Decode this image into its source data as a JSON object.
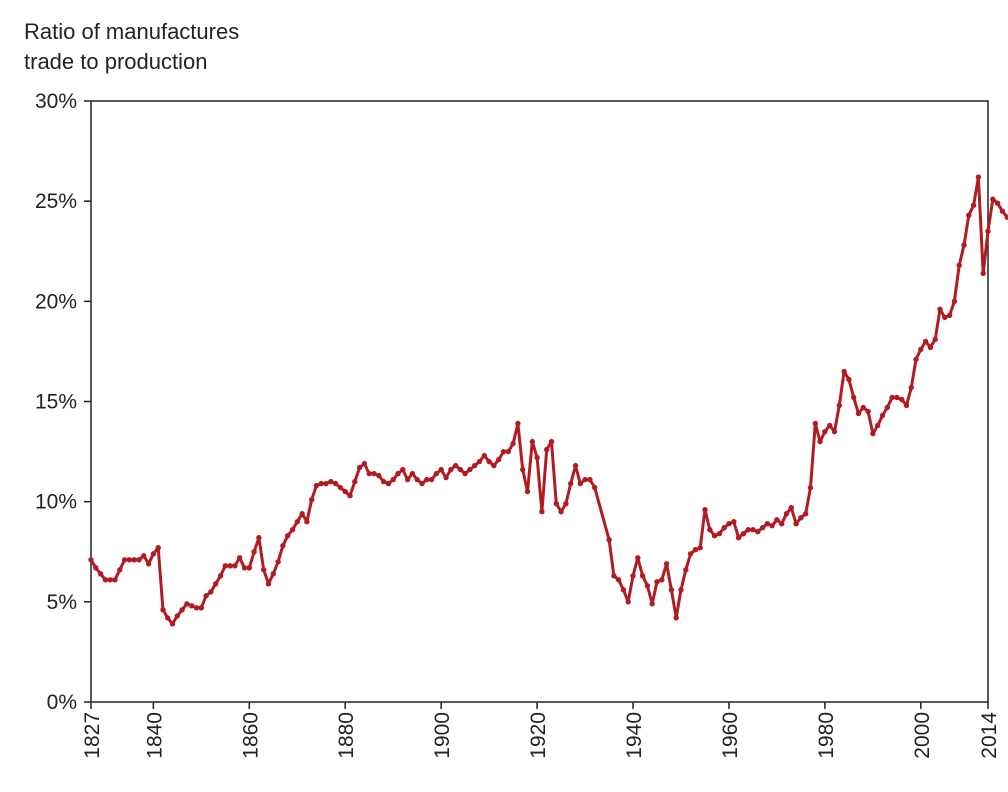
{
  "chart_data": {
    "type": "line",
    "title": "",
    "ylabel_lines": [
      "Ratio of manufactures",
      "trade to production"
    ],
    "xlabel": "",
    "xlim": [
      1827,
      2014
    ],
    "ylim": [
      0,
      30
    ],
    "y_ticks": [
      {
        "value": 0,
        "label": "0%"
      },
      {
        "value": 5,
        "label": "5%"
      },
      {
        "value": 10,
        "label": "10%"
      },
      {
        "value": 15,
        "label": "15%"
      },
      {
        "value": 20,
        "label": "20%"
      },
      {
        "value": 25,
        "label": "25%"
      },
      {
        "value": 30,
        "label": "30%"
      }
    ],
    "x_ticks": [
      {
        "value": 1827,
        "label": "1827"
      },
      {
        "value": 1840,
        "label": "1840"
      },
      {
        "value": 1860,
        "label": "1860"
      },
      {
        "value": 1880,
        "label": "1880"
      },
      {
        "value": 1900,
        "label": "1900"
      },
      {
        "value": 1920,
        "label": "1920"
      },
      {
        "value": 1940,
        "label": "1940"
      },
      {
        "value": 1960,
        "label": "1960"
      },
      {
        "value": 1980,
        "label": "1980"
      },
      {
        "value": 2000,
        "label": "2000"
      },
      {
        "value": 2014,
        "label": "2014"
      }
    ],
    "grid": false,
    "line_color": "#b01c22",
    "series": [
      {
        "points": [
          [
            1827,
            7.1
          ],
          [
            1828,
            6.7
          ],
          [
            1829,
            6.4
          ],
          [
            1830,
            6.1
          ],
          [
            1831,
            6.1
          ],
          [
            1832,
            6.1
          ],
          [
            1833,
            6.6
          ],
          [
            1834,
            7.1
          ],
          [
            1835,
            7.1
          ],
          [
            1836,
            7.1
          ],
          [
            1837,
            7.1
          ],
          [
            1838,
            7.3
          ],
          [
            1839,
            6.9
          ],
          [
            1840,
            7.4
          ],
          [
            1841,
            7.7
          ],
          [
            1842,
            4.6
          ],
          [
            1843,
            4.2
          ],
          [
            1844,
            3.9
          ],
          [
            1845,
            4.3
          ],
          [
            1846,
            4.6
          ],
          [
            1847,
            4.9
          ],
          [
            1848,
            4.8
          ],
          [
            1849,
            4.7
          ],
          [
            1850,
            4.7
          ],
          [
            1851,
            5.3
          ],
          [
            1852,
            5.5
          ],
          [
            1853,
            5.9
          ],
          [
            1854,
            6.3
          ],
          [
            1855,
            6.8
          ],
          [
            1856,
            6.8
          ],
          [
            1857,
            6.8
          ],
          [
            1858,
            7.2
          ],
          [
            1859,
            6.7
          ],
          [
            1860,
            6.7
          ],
          [
            1861,
            7.5
          ],
          [
            1862,
            8.2
          ],
          [
            1863,
            6.6
          ],
          [
            1864,
            5.9
          ],
          [
            1865,
            6.4
          ],
          [
            1866,
            7.0
          ],
          [
            1867,
            7.8
          ],
          [
            1868,
            8.3
          ],
          [
            1869,
            8.6
          ],
          [
            1870,
            9.0
          ],
          [
            1871,
            9.4
          ],
          [
            1872,
            9.0
          ],
          [
            1873,
            10.1
          ],
          [
            1874,
            10.8
          ],
          [
            1875,
            10.9
          ],
          [
            1876,
            10.9
          ],
          [
            1877,
            11.0
          ],
          [
            1878,
            10.9
          ],
          [
            1879,
            10.7
          ],
          [
            1880,
            10.5
          ],
          [
            1881,
            10.3
          ],
          [
            1882,
            11.0
          ],
          [
            1883,
            11.7
          ],
          [
            1884,
            11.9
          ],
          [
            1885,
            11.4
          ],
          [
            1886,
            11.4
          ],
          [
            1887,
            11.3
          ],
          [
            1888,
            11.0
          ],
          [
            1889,
            10.9
          ],
          [
            1890,
            11.1
          ],
          [
            1891,
            11.4
          ],
          [
            1892,
            11.6
          ],
          [
            1893,
            11.1
          ],
          [
            1894,
            11.4
          ],
          [
            1895,
            11.1
          ],
          [
            1896,
            10.9
          ],
          [
            1897,
            11.1
          ],
          [
            1898,
            11.1
          ],
          [
            1899,
            11.4
          ],
          [
            1900,
            11.6
          ],
          [
            1901,
            11.2
          ],
          [
            1902,
            11.6
          ],
          [
            1903,
            11.8
          ],
          [
            1904,
            11.6
          ],
          [
            1905,
            11.4
          ],
          [
            1906,
            11.6
          ],
          [
            1907,
            11.8
          ],
          [
            1908,
            12.0
          ],
          [
            1909,
            12.3
          ],
          [
            1910,
            12.0
          ],
          [
            1911,
            11.8
          ],
          [
            1912,
            12.1
          ],
          [
            1913,
            12.5
          ],
          [
            1914,
            12.5
          ],
          [
            1915,
            12.9
          ],
          [
            1916,
            13.9
          ],
          [
            1917,
            11.6
          ],
          [
            1918,
            10.5
          ],
          [
            1919,
            13.0
          ],
          [
            1920,
            12.2
          ],
          [
            1921,
            9.5
          ],
          [
            1922,
            12.6
          ],
          [
            1923,
            13.0
          ],
          [
            1924,
            9.9
          ],
          [
            1925,
            9.5
          ],
          [
            1926,
            9.9
          ],
          [
            1927,
            10.9
          ],
          [
            1928,
            11.8
          ],
          [
            1929,
            10.9
          ],
          [
            1930,
            11.1
          ],
          [
            1931,
            11.1
          ],
          [
            1932,
            10.7
          ],
          [
            1935,
            8.1
          ],
          [
            1936,
            6.3
          ],
          [
            1937,
            6.1
          ],
          [
            1938,
            5.6
          ],
          [
            1939,
            5.0
          ],
          [
            1940,
            6.3
          ],
          [
            1941,
            7.2
          ],
          [
            1942,
            6.3
          ],
          [
            1943,
            5.8
          ],
          [
            1944,
            4.9
          ],
          [
            1945,
            6.0
          ],
          [
            1946,
            6.1
          ],
          [
            1947,
            6.9
          ],
          [
            1948,
            5.6
          ],
          [
            1949,
            4.2
          ],
          [
            1950,
            5.6
          ],
          [
            1951,
            6.6
          ],
          [
            1952,
            7.4
          ],
          [
            1953,
            7.6
          ],
          [
            1954,
            7.7
          ],
          [
            1955,
            9.6
          ],
          [
            1956,
            8.6
          ],
          [
            1957,
            8.3
          ],
          [
            1958,
            8.4
          ],
          [
            1959,
            8.7
          ],
          [
            1960,
            8.9
          ],
          [
            1961,
            9.0
          ],
          [
            1962,
            8.2
          ],
          [
            1963,
            8.4
          ],
          [
            1964,
            8.6
          ],
          [
            1965,
            8.6
          ],
          [
            1966,
            8.5
          ],
          [
            1967,
            8.7
          ],
          [
            1968,
            8.9
          ],
          [
            1969,
            8.8
          ],
          [
            1970,
            9.1
          ],
          [
            1971,
            8.9
          ],
          [
            1972,
            9.4
          ],
          [
            1973,
            9.7
          ],
          [
            1974,
            8.9
          ],
          [
            1975,
            9.2
          ],
          [
            1976,
            9.4
          ],
          [
            1977,
            10.7
          ],
          [
            1978,
            13.9
          ],
          [
            1979,
            13.0
          ],
          [
            1980,
            13.5
          ],
          [
            1981,
            13.8
          ],
          [
            1982,
            13.5
          ],
          [
            1983,
            14.8
          ],
          [
            1984,
            16.5
          ],
          [
            1985,
            16.1
          ],
          [
            1986,
            15.2
          ],
          [
            1987,
            14.4
          ],
          [
            1988,
            14.7
          ],
          [
            1989,
            14.5
          ],
          [
            1990,
            13.4
          ],
          [
            1991,
            13.8
          ],
          [
            1992,
            14.3
          ],
          [
            1993,
            14.7
          ],
          [
            1994,
            15.2
          ],
          [
            1995,
            15.2
          ],
          [
            1996,
            15.1
          ],
          [
            1997,
            14.8
          ],
          [
            1998,
            15.7
          ],
          [
            1999,
            17.1
          ],
          [
            2000,
            17.6
          ],
          [
            2001,
            18.0
          ],
          [
            2002,
            17.7
          ],
          [
            2003,
            18.1
          ],
          [
            2004,
            19.6
          ],
          [
            2005,
            19.2
          ],
          [
            2006,
            19.3
          ],
          [
            2007,
            20.0
          ],
          [
            2008,
            21.8
          ],
          [
            2009,
            22.8
          ],
          [
            2010,
            24.3
          ],
          [
            2011,
            24.8
          ],
          [
            2012,
            26.2
          ],
          [
            2013,
            21.4
          ],
          [
            2014,
            23.5
          ],
          [
            2015,
            25.1
          ],
          [
            2016,
            24.9
          ],
          [
            2017,
            24.5
          ],
          [
            2018,
            24.2
          ],
          [
            2019,
            24.2
          ]
        ]
      }
    ]
  }
}
